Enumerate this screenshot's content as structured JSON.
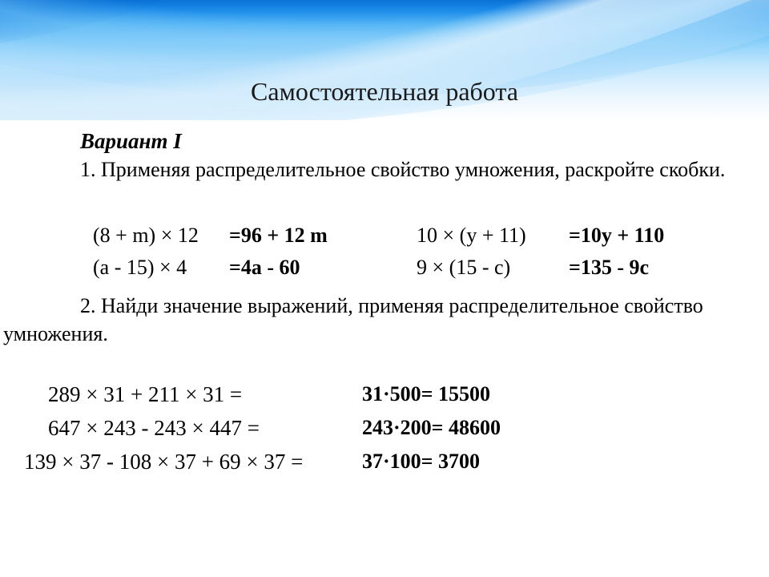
{
  "title": "Самостоятельная работа",
  "variant": "Вариант I",
  "task1": {
    "num": "1.",
    "text": "Применяя распределительное свойство умножения, раскройте скобки.",
    "r1": {
      "leftExpr": "(8 + m) × 12",
      "leftAns": "=96 + 12 m",
      "rightExpr": "10 × (y + 11)",
      "rightAns": "=10y +  110"
    },
    "r2": {
      "leftExpr": "(a - 15) × 4",
      "leftAns": "=4a - 60",
      "rightExpr": "9 × (15 - c)",
      "rightAns": "=135 -  9c"
    }
  },
  "task2": {
    "num": "2.",
    "text": "Найди значение выражений, применяя распределительное свойство умножения.",
    "c1": {
      "expr": "289 × 31 + 211 × 31 =",
      "ans": "31·500= 15500"
    },
    "c2": {
      "expr": "647 × 243 - 243 × 447 =",
      "ans": "243·200= 48600"
    },
    "c3": {
      "expr": "139 × 37 - 108 × 37 + 69 × 37 =",
      "ans": "37·100= 3700"
    }
  }
}
